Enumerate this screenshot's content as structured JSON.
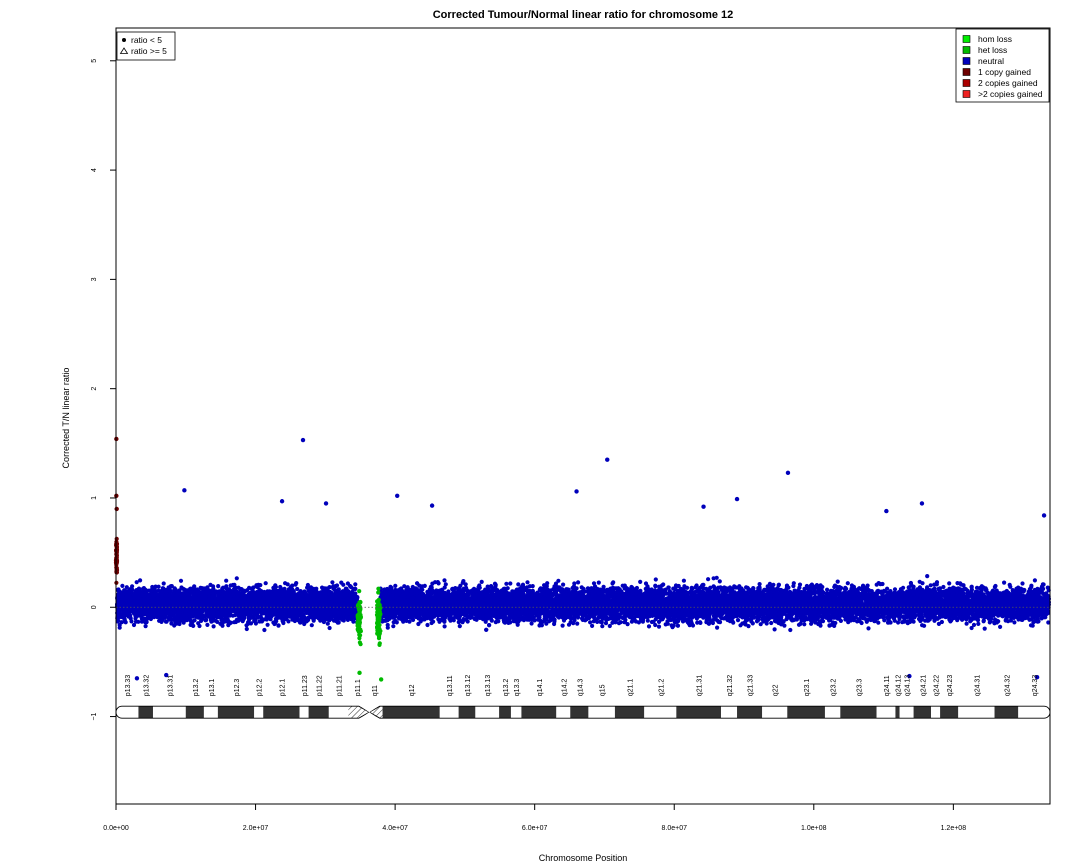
{
  "chart_data": {
    "type": "scatter",
    "title": "Corrected Tumour/Normal linear ratio for chromosome  12",
    "xlabel": "Chromosome Position",
    "ylabel": "Corrected T/N linear ratio",
    "xlim": [
      0,
      133850000
    ],
    "ylim": [
      -1.8,
      5.3
    ],
    "x_ticks": [
      0,
      20000000,
      40000000,
      60000000,
      80000000,
      100000000,
      120000000
    ],
    "x_tick_labels": [
      "0.0e+00",
      "2.0e+07",
      "4.0e+07",
      "6.0e+07",
      "8.0e+07",
      "1.0e+08",
      "1.2e+08"
    ],
    "y_ticks": [
      -1,
      0,
      1,
      2,
      3,
      4,
      5
    ],
    "y_tick_labels": [
      "−1",
      "0",
      "1",
      "2",
      "3",
      "4",
      "5"
    ],
    "reference_line_y": 0,
    "shape_legend": [
      {
        "label": "ratio < 5",
        "shape": "dot"
      },
      {
        "label": "ratio >= 5",
        "shape": "triangle"
      }
    ],
    "color_legend": [
      {
        "label": "hom loss",
        "color": "#00ee00"
      },
      {
        "label": "het loss",
        "color": "#00bb00"
      },
      {
        "label": "neutral",
        "color": "#0000bb"
      },
      {
        "label": "1 copy gained",
        "color": "#6e0000"
      },
      {
        "label": "2 copies gained",
        "color": "#aa0000"
      },
      {
        "label": ">2 copies gained",
        "color": "#ee2222"
      }
    ],
    "series": [
      {
        "name": "neutral",
        "color": "#0000bb",
        "segments": [
          [
            150000,
            34600000
          ],
          [
            37900000,
            133700000
          ]
        ],
        "center": 0.03,
        "spread": 0.17
      },
      {
        "name": "het loss",
        "color": "#00bb00",
        "segments": [
          [
            34600000,
            35100000
          ],
          [
            37400000,
            37900000
          ]
        ],
        "center": -0.12,
        "spread": 0.22
      },
      {
        "name": "1 copy gained",
        "color": "#6e0000",
        "segments": [
          [
            0,
            150000
          ]
        ],
        "center": 0.45,
        "spread": 0.2
      }
    ],
    "notable_points": [
      {
        "x": 50000,
        "y": 1.54,
        "class": "1 copy gained"
      },
      {
        "x": 26800000,
        "y": 1.53,
        "class": "neutral"
      },
      {
        "x": 70400000,
        "y": 1.35,
        "class": "neutral"
      },
      {
        "x": 96300000,
        "y": 1.23,
        "class": "neutral"
      },
      {
        "x": 9800000,
        "y": 1.07,
        "class": "neutral"
      },
      {
        "x": 66000000,
        "y": 1.06,
        "class": "neutral"
      },
      {
        "x": 40300000,
        "y": 1.02,
        "class": "neutral"
      },
      {
        "x": 50000,
        "y": 1.02,
        "class": "1 copy gained"
      },
      {
        "x": 89000000,
        "y": 0.99,
        "class": "neutral"
      },
      {
        "x": 23800000,
        "y": 0.97,
        "class": "neutral"
      },
      {
        "x": 115500000,
        "y": 0.95,
        "class": "neutral"
      },
      {
        "x": 30100000,
        "y": 0.95,
        "class": "neutral"
      },
      {
        "x": 45300000,
        "y": 0.93,
        "class": "neutral"
      },
      {
        "x": 84200000,
        "y": 0.92,
        "class": "neutral"
      },
      {
        "x": 100000,
        "y": 0.9,
        "class": "1 copy gained"
      },
      {
        "x": 110400000,
        "y": 0.88,
        "class": "neutral"
      },
      {
        "x": 133000000,
        "y": 0.84,
        "class": "neutral"
      },
      {
        "x": 3000000,
        "y": -0.65,
        "class": "neutral"
      },
      {
        "x": 7200000,
        "y": -0.62,
        "class": "neutral"
      },
      {
        "x": 113700000,
        "y": -0.63,
        "class": "neutral"
      },
      {
        "x": 132000000,
        "y": -0.64,
        "class": "neutral"
      },
      {
        "x": 38000000,
        "y": -0.66,
        "class": "het loss"
      },
      {
        "x": 34900000,
        "y": -0.6,
        "class": "het loss"
      }
    ],
    "ideogram": {
      "y": -0.96,
      "centromere": [
        34800000,
        37800000
      ],
      "bands": [
        {
          "name": "p13.33",
          "start": 0,
          "end": 3200000,
          "stain": "gneg"
        },
        {
          "name": "p13.32",
          "start": 3200000,
          "end": 5300000,
          "stain": "gpos"
        },
        {
          "name": "p13.31",
          "start": 5300000,
          "end": 10000000,
          "stain": "gneg"
        },
        {
          "name": "p13.2",
          "start": 10000000,
          "end": 12600000,
          "stain": "gpos"
        },
        {
          "name": "p13.1",
          "start": 12600000,
          "end": 14600000,
          "stain": "gneg"
        },
        {
          "name": "p12.3",
          "start": 14600000,
          "end": 19800000,
          "stain": "gpos"
        },
        {
          "name": "p12.2",
          "start": 19800000,
          "end": 21100000,
          "stain": "gneg"
        },
        {
          "name": "p12.1",
          "start": 21100000,
          "end": 26300000,
          "stain": "gpos"
        },
        {
          "name": "p11.23",
          "start": 26300000,
          "end": 27600000,
          "stain": "gneg"
        },
        {
          "name": "p11.22",
          "start": 27600000,
          "end": 30500000,
          "stain": "gpos"
        },
        {
          "name": "p11.21",
          "start": 30500000,
          "end": 33300000,
          "stain": "gneg"
        },
        {
          "name": "p11.1",
          "start": 33300000,
          "end": 35800000,
          "stain": "cen"
        },
        {
          "name": "q11",
          "start": 35800000,
          "end": 38200000,
          "stain": "cen"
        },
        {
          "name": "q12",
          "start": 38200000,
          "end": 46400000,
          "stain": "gpos"
        },
        {
          "name": "q13.11",
          "start": 46400000,
          "end": 49100000,
          "stain": "gneg"
        },
        {
          "name": "q13.12",
          "start": 49100000,
          "end": 51500000,
          "stain": "gpos"
        },
        {
          "name": "q13.13",
          "start": 51500000,
          "end": 54900000,
          "stain": "gneg"
        },
        {
          "name": "q13.2",
          "start": 54900000,
          "end": 56600000,
          "stain": "gpos"
        },
        {
          "name": "q13.3",
          "start": 56600000,
          "end": 58100000,
          "stain": "gneg"
        },
        {
          "name": "q14.1",
          "start": 58100000,
          "end": 63100000,
          "stain": "gpos"
        },
        {
          "name": "q14.2",
          "start": 63100000,
          "end": 65100000,
          "stain": "gneg"
        },
        {
          "name": "q14.3",
          "start": 65100000,
          "end": 67700000,
          "stain": "gpos"
        },
        {
          "name": "q15",
          "start": 67700000,
          "end": 71500000,
          "stain": "gneg"
        },
        {
          "name": "q21.1",
          "start": 71500000,
          "end": 75700000,
          "stain": "gpos"
        },
        {
          "name": "q21.2",
          "start": 75700000,
          "end": 80300000,
          "stain": "gneg"
        },
        {
          "name": "q21.31",
          "start": 80300000,
          "end": 86700000,
          "stain": "gpos"
        },
        {
          "name": "q21.32",
          "start": 86700000,
          "end": 89000000,
          "stain": "gneg"
        },
        {
          "name": "q21.33",
          "start": 89000000,
          "end": 92600000,
          "stain": "gpos"
        },
        {
          "name": "q22",
          "start": 92600000,
          "end": 96200000,
          "stain": "gneg"
        },
        {
          "name": "q23.1",
          "start": 96200000,
          "end": 101600000,
          "stain": "gpos"
        },
        {
          "name": "q23.2",
          "start": 101600000,
          "end": 103800000,
          "stain": "gneg"
        },
        {
          "name": "q23.3",
          "start": 103800000,
          "end": 109000000,
          "stain": "gpos"
        },
        {
          "name": "q24.11",
          "start": 109000000,
          "end": 111700000,
          "stain": "gneg"
        },
        {
          "name": "q24.12",
          "start": 111700000,
          "end": 112300000,
          "stain": "gpos"
        },
        {
          "name": "q24.13",
          "start": 112300000,
          "end": 114300000,
          "stain": "gneg"
        },
        {
          "name": "q24.21",
          "start": 114300000,
          "end": 116800000,
          "stain": "gpos"
        },
        {
          "name": "q24.22",
          "start": 116800000,
          "end": 118100000,
          "stain": "gneg"
        },
        {
          "name": "q24.23",
          "start": 118100000,
          "end": 120700000,
          "stain": "gpos"
        },
        {
          "name": "q24.31",
          "start": 120700000,
          "end": 125900000,
          "stain": "gneg"
        },
        {
          "name": "q24.32",
          "start": 125900000,
          "end": 129300000,
          "stain": "gpos"
        },
        {
          "name": "q24.33",
          "start": 129300000,
          "end": 133850000,
          "stain": "gneg"
        }
      ]
    }
  }
}
